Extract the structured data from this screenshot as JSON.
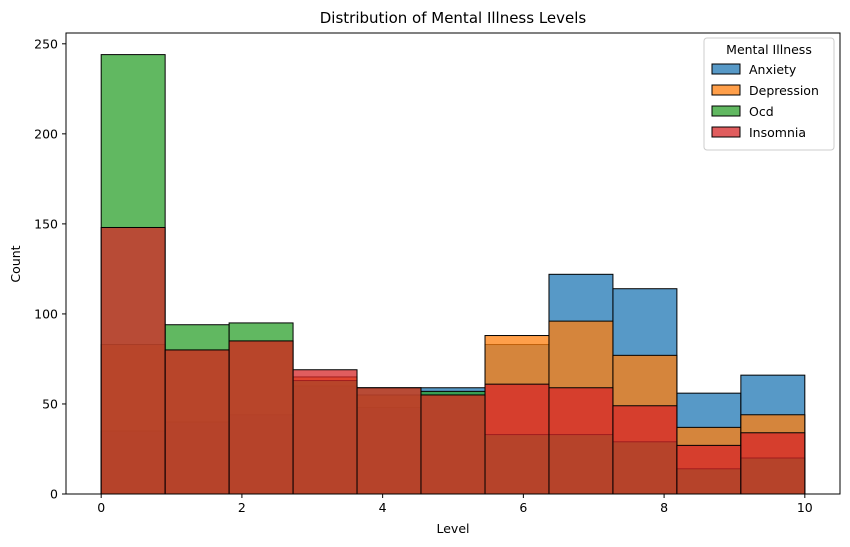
{
  "chart_data": {
    "type": "bar",
    "title": "Distribution of Mental Illness Levels",
    "xlabel": "Level",
    "ylabel": "Count",
    "xlim": [
      -0.5,
      10.5
    ],
    "ylim": [
      0,
      256
    ],
    "xticks": [
      0,
      2,
      4,
      6,
      8,
      10
    ],
    "yticks": [
      0,
      50,
      100,
      150,
      200,
      250
    ],
    "bin_edges": [
      0,
      0.909,
      1.818,
      2.727,
      3.636,
      4.545,
      5.455,
      6.364,
      7.273,
      8.182,
      9.091,
      10
    ],
    "legend": {
      "title": "Mental Illness",
      "placement": "top-right"
    },
    "series": [
      {
        "name": "Anxiety",
        "color": "#1f77b4",
        "values": [
          35,
          40,
          44,
          60,
          48,
          59,
          83,
          122,
          114,
          56,
          66
        ]
      },
      {
        "name": "Depression",
        "color": "#ff7f0e",
        "values": [
          83,
          80,
          85,
          65,
          55,
          55,
          88,
          96,
          77,
          37,
          44
        ]
      },
      {
        "name": "Ocd",
        "color": "#2ca02c",
        "values": [
          244,
          94,
          95,
          63,
          59,
          57,
          33,
          33,
          29,
          14,
          20
        ]
      },
      {
        "name": "Insomnia",
        "color": "#d62728",
        "values": [
          148,
          80,
          85,
          69,
          59,
          55,
          61,
          59,
          49,
          27,
          34
        ]
      }
    ]
  }
}
